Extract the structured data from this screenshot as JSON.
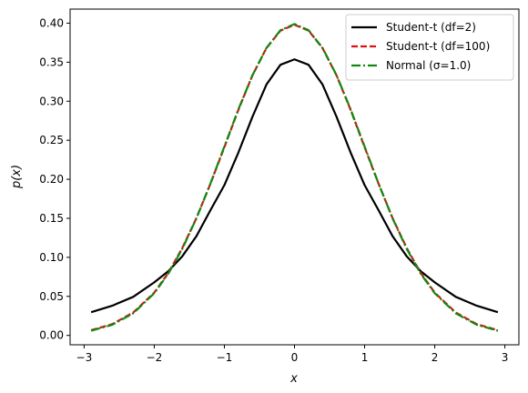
{
  "chart_data": {
    "type": "line",
    "title": "",
    "xlabel": "x",
    "ylabel": "p(x)",
    "xlim": [
      -3.2,
      3.2
    ],
    "ylim": [
      -0.012,
      0.418
    ],
    "xticks": [
      -3,
      -2,
      -1,
      0,
      1,
      2,
      3
    ],
    "xtick_labels": [
      "−3",
      "−2",
      "−1",
      "0",
      "1",
      "2",
      "3"
    ],
    "yticks": [
      0.0,
      0.05,
      0.1,
      0.15,
      0.2,
      0.25,
      0.3,
      0.35,
      0.4
    ],
    "ytick_labels": [
      "0.00",
      "0.05",
      "0.10",
      "0.15",
      "0.20",
      "0.25",
      "0.30",
      "0.35",
      "0.40"
    ],
    "grid": false,
    "legend_position": "top-right",
    "x": [
      -2.9,
      -2.6,
      -2.3,
      -2.0,
      -1.8,
      -1.6,
      -1.4,
      -1.2,
      -1.0,
      -0.8,
      -0.6,
      -0.4,
      -0.2,
      0.0,
      0.2,
      0.4,
      0.6,
      0.8,
      1.0,
      1.2,
      1.4,
      1.6,
      1.8,
      2.0,
      2.3,
      2.6,
      2.9
    ],
    "series": [
      {
        "name": "Student-t (df=2)",
        "color": "#000000",
        "dash": "solid",
        "values": [
          0.0297,
          0.038,
          0.0494,
          0.068,
          0.0822,
          0.1014,
          0.1269,
          0.1602,
          0.1925,
          0.2343,
          0.28,
          0.3214,
          0.3467,
          0.3536,
          0.3467,
          0.3214,
          0.28,
          0.2343,
          0.1925,
          0.1602,
          0.1269,
          0.1014,
          0.0822,
          0.068,
          0.0494,
          0.038,
          0.0297
        ]
      },
      {
        "name": "Student-t (df=100)",
        "color": "#dd1111",
        "dash": "dashed",
        "values": [
          0.0067,
          0.0144,
          0.0293,
          0.0548,
          0.08,
          0.112,
          0.15,
          0.194,
          0.241,
          0.289,
          0.333,
          0.368,
          0.3904,
          0.3979,
          0.3904,
          0.368,
          0.333,
          0.289,
          0.241,
          0.194,
          0.15,
          0.112,
          0.08,
          0.0548,
          0.0293,
          0.0144,
          0.0067
        ]
      },
      {
        "name": "Normal (σ=1.0)",
        "color": "#118811",
        "dash": "dashdot",
        "values": [
          0.006,
          0.0136,
          0.0283,
          0.054,
          0.079,
          0.1109,
          0.1497,
          0.1942,
          0.242,
          0.2897,
          0.3332,
          0.3683,
          0.391,
          0.3989,
          0.391,
          0.3683,
          0.3332,
          0.2897,
          0.242,
          0.1942,
          0.1497,
          0.1109,
          0.079,
          0.054,
          0.0283,
          0.0136,
          0.006
        ]
      }
    ]
  }
}
